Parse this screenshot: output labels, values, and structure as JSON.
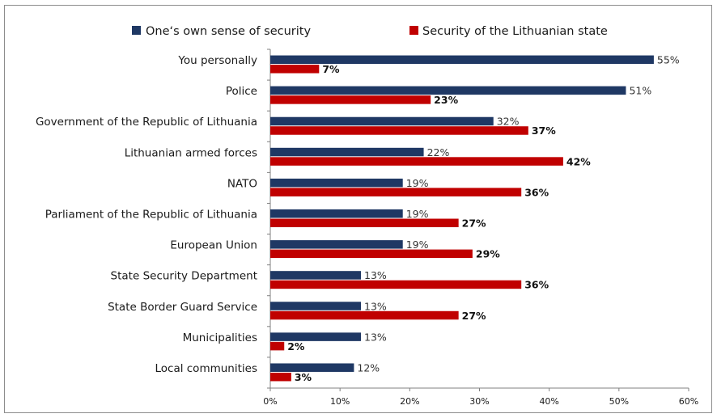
{
  "chart_data": {
    "type": "bar",
    "orientation": "horizontal",
    "title": "",
    "xlabel": "",
    "ylabel": "",
    "categories": [
      "You personally",
      "Police",
      "Government of the Republic of Lithuania",
      "Lithuanian armed forces",
      "NATO",
      "Parliament of the Republic of Lithuania",
      "European Union",
      "State Security Department",
      "State Border Guard Service",
      "Municipalities",
      "Local communities"
    ],
    "series": [
      {
        "name": "One‘s own sense of security",
        "color": "#1f3864",
        "values": [
          55,
          51,
          32,
          22,
          19,
          19,
          19,
          13,
          13,
          13,
          12
        ],
        "labels": [
          "55%",
          "51%",
          "32%",
          "22%",
          "19%",
          "19%",
          "19%",
          "13%",
          "13%",
          "13%",
          "12%"
        ]
      },
      {
        "name": "Security of the Lithuanian state",
        "color": "#c00000",
        "values": [
          7,
          23,
          37,
          42,
          36,
          27,
          29,
          36,
          27,
          2,
          3
        ],
        "labels": [
          "7%",
          "23%",
          "37%",
          "42%",
          "36%",
          "27%",
          "29%",
          "36%",
          "27%",
          "2%",
          "3%"
        ]
      }
    ],
    "xlim": [
      0,
      60
    ],
    "xticks": [
      0,
      10,
      20,
      30,
      40,
      50,
      60
    ],
    "xtick_labels": [
      "0%",
      "10%",
      "20%",
      "30%",
      "40%",
      "50%",
      "60%"
    ],
    "grid": false,
    "legend_position": "top"
  }
}
